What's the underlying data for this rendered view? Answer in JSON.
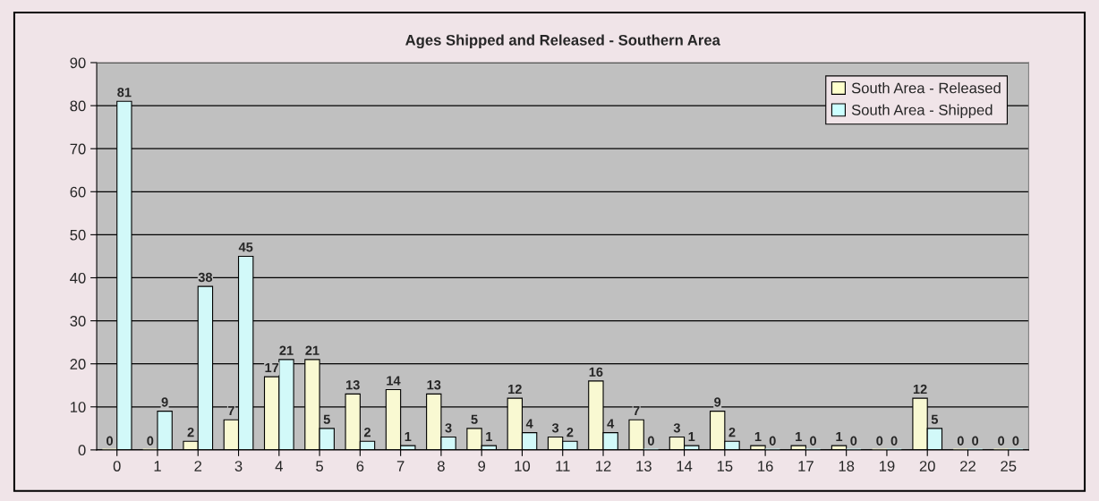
{
  "chart_data": {
    "type": "bar",
    "title": "Ages Shipped and Released - Southern Area",
    "categories": [
      "0",
      "1",
      "2",
      "3",
      "4",
      "5",
      "6",
      "7",
      "8",
      "9",
      "10",
      "11",
      "12",
      "13",
      "14",
      "15",
      "16",
      "17",
      "18",
      "19",
      "20",
      "22",
      "25"
    ],
    "series": [
      {
        "name": "South Area - Released",
        "color": "#ffffcc",
        "values": [
          0,
          0,
          2,
          7,
          17,
          21,
          13,
          14,
          13,
          5,
          12,
          3,
          16,
          7,
          3,
          9,
          1,
          1,
          1,
          0,
          12,
          0,
          0
        ]
      },
      {
        "name": "South Area - Shipped",
        "color": "#ccffff",
        "values": [
          81,
          9,
          38,
          45,
          21,
          5,
          2,
          1,
          3,
          1,
          4,
          2,
          4,
          0,
          1,
          2,
          0,
          0,
          0,
          0,
          5,
          0,
          0
        ]
      }
    ],
    "ylim": [
      0,
      90
    ],
    "yticks": [
      0,
      10,
      20,
      30,
      40,
      50,
      60,
      70,
      80,
      90
    ],
    "grid": "y",
    "legend": "top right",
    "data_labels": true
  }
}
